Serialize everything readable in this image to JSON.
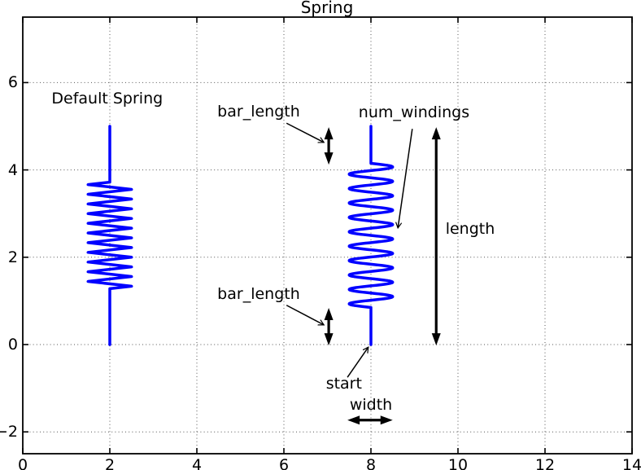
{
  "title": "Spring",
  "labels": {
    "title": "Spring",
    "default_spring": "Default Spring",
    "bar_length_top": "bar_length",
    "bar_length_bottom": "bar_length",
    "num_windings": "num_windings",
    "length": "length",
    "start": "start",
    "width": "width"
  },
  "colors": {
    "spring": "#0000ff",
    "axis": "#000000",
    "grid": "#555555",
    "annotation": "#000000",
    "background": "#ffffff"
  },
  "chart_data": {
    "type": "line",
    "title": "Spring",
    "xlabel": "",
    "ylabel": "",
    "xlim": [
      0,
      14
    ],
    "ylim": [
      -2.5,
      7.5
    ],
    "xticks": [
      0,
      2,
      4,
      6,
      8,
      10,
      12,
      14
    ],
    "yticks": [
      -2,
      0,
      2,
      4,
      6
    ],
    "ytick_labels": [
      "−2",
      "0",
      "2",
      "4",
      "6"
    ],
    "grid": true,
    "grid_style": "dotted",
    "springs": [
      {
        "name": "default-spring",
        "x": 2,
        "start_y": 0,
        "length": 5,
        "bar_length": 1.28,
        "num_windings": 11,
        "width": 1.0,
        "style": "zigzag",
        "linewidth": 3.5
      },
      {
        "name": "annotated-spring",
        "x": 8,
        "start_y": 0,
        "length": 5,
        "bar_length": 0.85,
        "num_windings": 10,
        "width": 1.0,
        "style": "sine",
        "linewidth": 3.5
      }
    ],
    "text_annotations": [
      {
        "key": "default_spring",
        "text": "Default Spring",
        "x": 1.94,
        "y": 5.63
      },
      {
        "key": "bar_length_top",
        "text": "bar_length",
        "x": 5.42,
        "y": 5.34
      },
      {
        "key": "bar_length_bottom",
        "text": "bar_length",
        "x": 5.42,
        "y": 1.16
      },
      {
        "key": "num_windings",
        "text": "num_windings",
        "x": 8.99,
        "y": 5.32
      },
      {
        "key": "length",
        "text": "length",
        "x": 10.28,
        "y": 2.65
      },
      {
        "key": "start",
        "text": "start",
        "x": 7.38,
        "y": -0.9
      },
      {
        "key": "width",
        "text": "width",
        "x": 8.0,
        "y": -1.38
      }
    ],
    "thin_arrows": [
      {
        "name": "bar-length-top-arrow",
        "from": [
          6.06,
          5.07
        ],
        "to": [
          6.92,
          4.63
        ]
      },
      {
        "name": "bar-length-bottom-arrow",
        "from": [
          6.06,
          0.9
        ],
        "to": [
          6.92,
          0.45
        ]
      },
      {
        "name": "num-windings-arrow",
        "from": [
          8.95,
          4.94
        ],
        "to": [
          8.62,
          2.67
        ]
      },
      {
        "name": "start-arrow",
        "from": [
          7.46,
          -0.75
        ],
        "to": [
          7.94,
          -0.06
        ]
      }
    ],
    "double_arrows": [
      {
        "name": "bar-length-top-indicator",
        "from": [
          7.03,
          4.12
        ],
        "to": [
          7.03,
          4.98
        ]
      },
      {
        "name": "bar-length-bottom-indicator",
        "from": [
          7.03,
          -0.02
        ],
        "to": [
          7.03,
          0.84
        ]
      },
      {
        "name": "length-indicator",
        "from": [
          9.5,
          -0.02
        ],
        "to": [
          9.5,
          4.98
        ]
      },
      {
        "name": "width-indicator",
        "from": [
          7.46,
          -1.73
        ],
        "to": [
          8.5,
          -1.73
        ]
      }
    ]
  }
}
